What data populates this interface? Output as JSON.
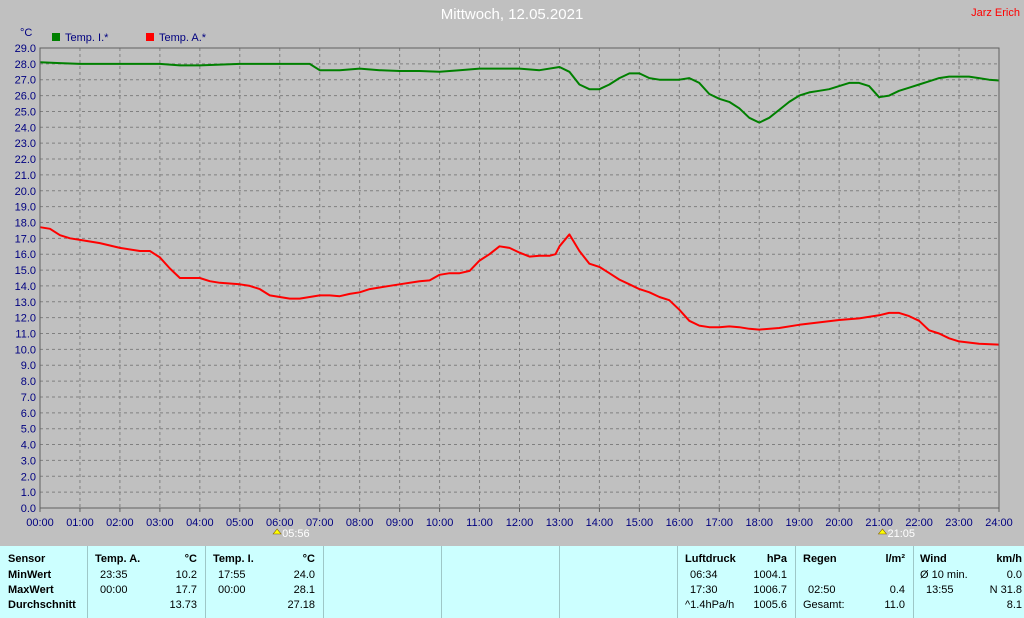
{
  "title": "Mittwoch, 12.05.2021",
  "author": "Jarz Erich",
  "chart_data": {
    "type": "line",
    "ylabel": "°C",
    "ylim": [
      0,
      29
    ],
    "ytick_step": 1,
    "xlim": [
      0,
      24
    ],
    "x_ticks": [
      "00:00",
      "01:00",
      "02:00",
      "03:00",
      "04:00",
      "05:00",
      "06:00",
      "07:00",
      "08:00",
      "09:00",
      "10:00",
      "11:00",
      "12:00",
      "13:00",
      "14:00",
      "15:00",
      "16:00",
      "17:00",
      "18:00",
      "19:00",
      "20:00",
      "21:00",
      "22:00",
      "23:00",
      "24:00"
    ],
    "sunrise": "05:56",
    "sunset": "21:05",
    "grid": true,
    "legend": "top-left",
    "series": [
      {
        "name": "Temp. I.*",
        "color": "#008000",
        "x": [
          0,
          0.5,
          1,
          1.5,
          2,
          3,
          3.5,
          4,
          5,
          6,
          6.75,
          7,
          7.5,
          8,
          8.5,
          9,
          9.5,
          10,
          10.5,
          11,
          11.5,
          12,
          12.5,
          13,
          13.25,
          13.5,
          13.75,
          14,
          14.25,
          14.5,
          14.75,
          15,
          15.25,
          15.5,
          15.75,
          16,
          16.25,
          16.5,
          16.75,
          17,
          17.25,
          17.5,
          17.75,
          18,
          18.25,
          18.5,
          18.75,
          19,
          19.25,
          19.5,
          19.75,
          20,
          20.25,
          20.5,
          20.75,
          21,
          21.25,
          21.5,
          21.75,
          22,
          22.25,
          22.5,
          22.75,
          23,
          23.25,
          23.5,
          23.75,
          24
        ],
        "y": [
          28.1,
          28.05,
          28.0,
          28.0,
          28.0,
          28.0,
          27.9,
          27.9,
          28.0,
          28.0,
          28.0,
          27.6,
          27.6,
          27.7,
          27.6,
          27.55,
          27.55,
          27.5,
          27.6,
          27.7,
          27.7,
          27.7,
          27.6,
          27.8,
          27.5,
          26.7,
          26.4,
          26.4,
          26.7,
          27.1,
          27.4,
          27.4,
          27.1,
          27.0,
          27.0,
          27.0,
          27.1,
          26.8,
          26.1,
          25.8,
          25.6,
          25.2,
          24.6,
          24.3,
          24.6,
          25.1,
          25.6,
          26.0,
          26.2,
          26.3,
          26.4,
          26.6,
          26.8,
          26.8,
          26.6,
          25.9,
          26.0,
          26.3,
          26.5,
          26.7,
          26.9,
          27.1,
          27.2,
          27.2,
          27.2,
          27.1,
          27.0,
          26.95
        ]
      },
      {
        "name": "Temp. A.*",
        "color": "#ff0000",
        "x": [
          0,
          0.25,
          0.5,
          0.75,
          1,
          1.5,
          2,
          2.5,
          2.75,
          3,
          3.25,
          3.5,
          3.75,
          4,
          4.25,
          4.5,
          5,
          5.25,
          5.5,
          5.75,
          6,
          6.25,
          6.5,
          6.75,
          7,
          7.25,
          7.5,
          7.75,
          8,
          8.25,
          8.5,
          9,
          9.5,
          9.75,
          10,
          10.25,
          10.5,
          10.75,
          11,
          11.25,
          11.5,
          11.75,
          12,
          12.25,
          12.5,
          12.75,
          12.9,
          13,
          13.25,
          13.5,
          13.75,
          14,
          14.25,
          14.5,
          14.75,
          15,
          15.25,
          15.5,
          15.75,
          16,
          16.25,
          16.5,
          16.75,
          17,
          17.25,
          17.5,
          17.75,
          18,
          18.5,
          19,
          19.5,
          20,
          20.5,
          21,
          21.25,
          21.5,
          21.75,
          22,
          22.25,
          22.5,
          22.75,
          23,
          23.5,
          24
        ],
        "y": [
          17.7,
          17.6,
          17.2,
          17.0,
          16.9,
          16.7,
          16.4,
          16.2,
          16.2,
          15.8,
          15.1,
          14.5,
          14.5,
          14.5,
          14.3,
          14.2,
          14.1,
          14.0,
          13.8,
          13.4,
          13.3,
          13.2,
          13.2,
          13.3,
          13.4,
          13.4,
          13.35,
          13.5,
          13.6,
          13.8,
          13.9,
          14.1,
          14.3,
          14.35,
          14.7,
          14.8,
          14.8,
          14.95,
          15.6,
          16.0,
          16.5,
          16.4,
          16.1,
          15.85,
          15.9,
          15.9,
          16.0,
          16.5,
          17.25,
          16.2,
          15.4,
          15.2,
          14.8,
          14.4,
          14.1,
          13.8,
          13.6,
          13.3,
          13.1,
          12.5,
          11.8,
          11.5,
          11.4,
          11.4,
          11.45,
          11.4,
          11.3,
          11.25,
          11.35,
          11.55,
          11.7,
          11.85,
          11.95,
          12.15,
          12.3,
          12.3,
          12.1,
          11.8,
          11.2,
          11.0,
          10.7,
          10.5,
          10.35,
          10.3
        ]
      }
    ]
  },
  "stats": {
    "sensor": {
      "header": "Sensor",
      "rows": [
        "MinWert",
        "MaxWert",
        "Durchschnitt"
      ]
    },
    "temp_a": {
      "header": "Temp. A.",
      "unit": "°C",
      "min_time": "23:35",
      "min_val": "10.2",
      "max_time": "00:00",
      "max_val": "17.7",
      "avg": "13.73"
    },
    "temp_i": {
      "header": "Temp. I.",
      "unit": "°C",
      "min_time": "17:55",
      "min_val": "24.0",
      "max_time": "00:00",
      "max_val": "28.1",
      "avg": "27.18"
    },
    "luftdruck": {
      "header": "Luftdruck",
      "unit": "hPa",
      "min_time": "06:34",
      "min_val": "1004.1",
      "max_time": "17:30",
      "max_val": "1006.7",
      "trend_label": "^1.4hPa/h",
      "trend_val": "1005.6"
    },
    "regen": {
      "header": "Regen",
      "unit": "l/m²",
      "time": "02:50",
      "val": "0.4",
      "total_label": "Gesamt:",
      "total_val": "11.0"
    },
    "wind": {
      "header": "Wind",
      "unit": "km/h",
      "avg_label": "Ø 10 min.",
      "avg_val": "0.0",
      "gust_time": "13:55",
      "gust_val": "N 31.8",
      "day_val": "8.1"
    }
  }
}
